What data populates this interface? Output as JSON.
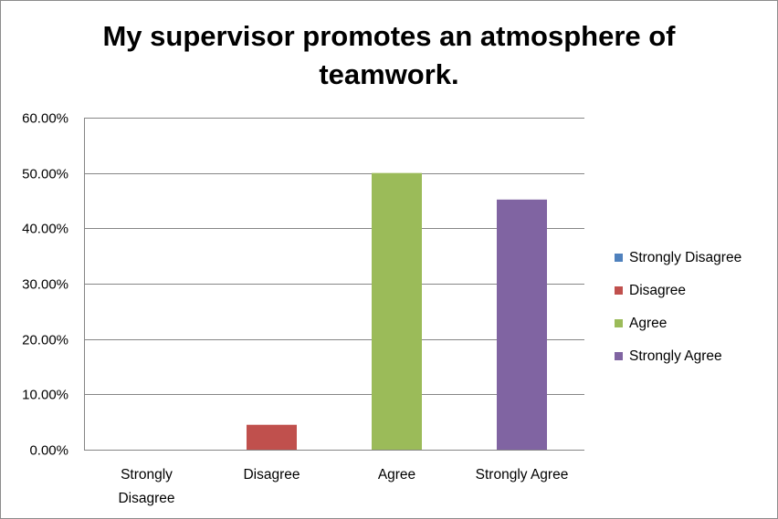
{
  "chart_data": {
    "type": "bar",
    "title": "My supervisor promotes an atmosphere of teamwork.",
    "xlabel": "",
    "ylabel": "",
    "ylim": [
      0,
      60
    ],
    "y_tick_labels": [
      "0.00%",
      "10.00%",
      "20.00%",
      "30.00%",
      "40.00%",
      "50.00%",
      "60.00%"
    ],
    "categories": [
      {
        "lines": [
          "Strongly",
          "Disagree"
        ]
      },
      {
        "lines": [
          "Disagree"
        ]
      },
      {
        "lines": [
          "Agree"
        ]
      },
      {
        "lines": [
          "Strongly Agree"
        ]
      }
    ],
    "values": [
      0,
      4.5,
      50,
      45.2
    ],
    "colors": [
      "#4f81bd",
      "#c0504d",
      "#9bbb59",
      "#8064a2"
    ],
    "legend": {
      "position": "right",
      "entries": [
        "Strongly Disagree",
        "Disagree",
        "Agree",
        "Strongly Agree"
      ]
    },
    "grid": true
  }
}
